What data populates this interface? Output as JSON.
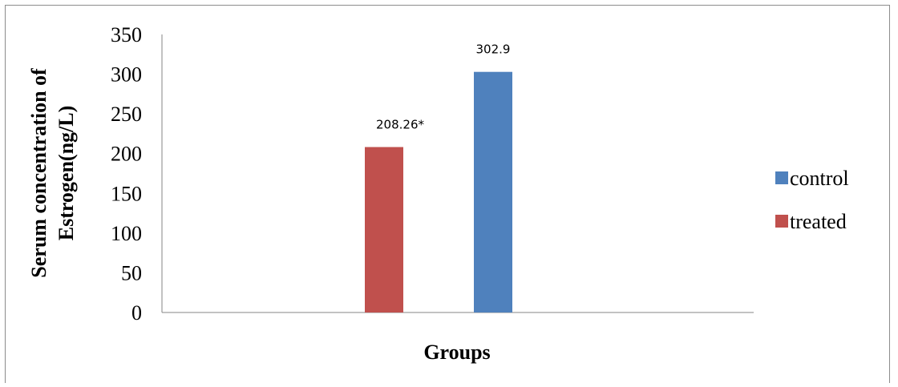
{
  "chart_data": {
    "type": "bar",
    "title": "",
    "xlabel": "Groups",
    "ylabel": [
      "Serum concentration of",
      "Estrogen(ng/L)"
    ],
    "ylim": [
      0,
      350
    ],
    "yticks": [
      "0",
      "50",
      "100",
      "150",
      "200",
      "250",
      "300",
      "350"
    ],
    "grid": false,
    "legend_position": "right",
    "series": [
      {
        "name": "treated",
        "color": "#c0504d",
        "value": 208.26,
        "label": "208.26*"
      },
      {
        "name": "control",
        "color": "#4f81bd",
        "value": 302.9,
        "label": "302.9"
      }
    ],
    "legend_order": [
      "control",
      "treated"
    ]
  }
}
